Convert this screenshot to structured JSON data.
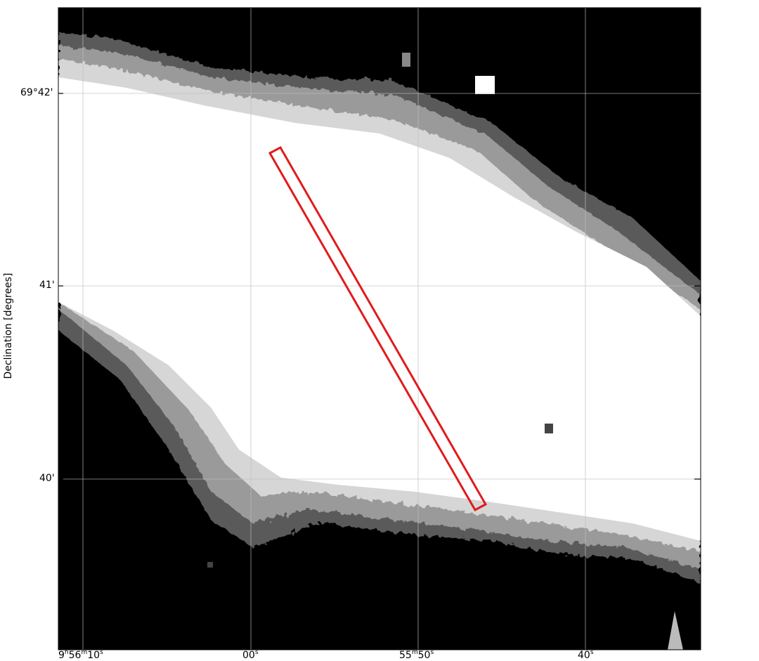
{
  "figure": {
    "ylabel": "Declination [degrees]",
    "dec_ticks": [
      "69°42'",
      "41'",
      "40'"
    ],
    "ra_ticks": [
      {
        "h": "9",
        "m": "56",
        "s": "10"
      },
      {
        "s": "00"
      },
      {
        "m": "55",
        "s": "50"
      },
      {
        "s": "40"
      }
    ]
  },
  "colors": {
    "background_sky": "#000000",
    "emission": "#ffffff",
    "grid": "#bdbdbd",
    "slit": "#e01b1b"
  }
}
